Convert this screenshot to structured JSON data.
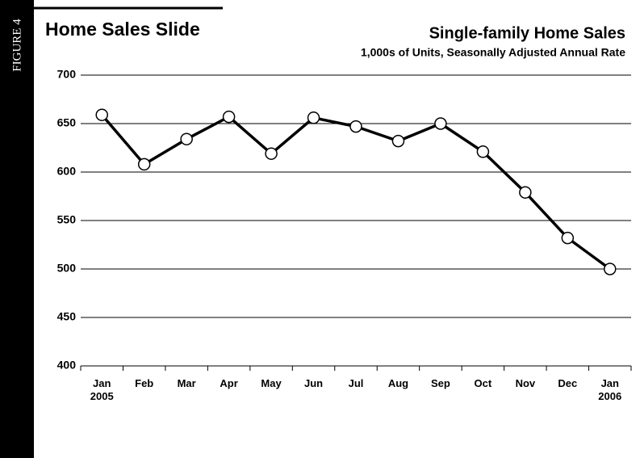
{
  "chart_data": {
    "type": "line",
    "figure_label": "FIGURE 4",
    "title": "Home Sales Slide",
    "chart_title": "Single-family Home Sales",
    "subtitle": "1,000s of Units, Seasonally Adjusted Annual Rate",
    "categories": [
      "Jan\n2005",
      "Feb",
      "Mar",
      "Apr",
      "May",
      "Jun",
      "Jul",
      "Aug",
      "Sep",
      "Oct",
      "Nov",
      "Dec",
      "Jan\n2006"
    ],
    "values": [
      659,
      608,
      634,
      657,
      619,
      656,
      647,
      632,
      650,
      621,
      579,
      532,
      500
    ],
    "color": "#000000",
    "marker_fill": "#ffffff",
    "ylim": [
      400,
      700
    ],
    "yticks": [
      400,
      450,
      500,
      550,
      600,
      650,
      700
    ],
    "grid": true
  }
}
